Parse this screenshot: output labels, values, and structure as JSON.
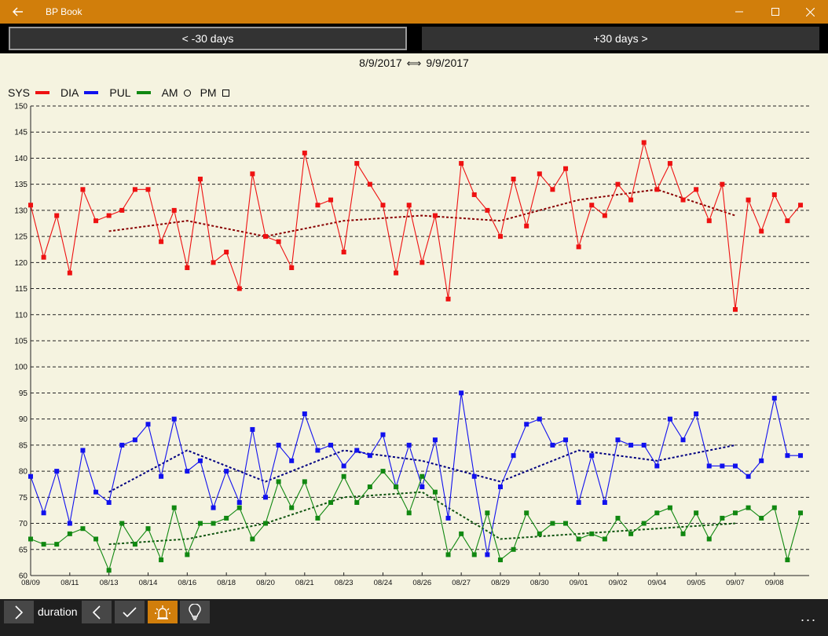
{
  "app": {
    "title": "BP Book"
  },
  "nav": {
    "prev_label": "< -30 days",
    "next_label": "+30 days >"
  },
  "date_range": {
    "start": "8/9/2017",
    "end": "9/9/2017",
    "arrow": "⟺"
  },
  "legend": {
    "sys": "SYS",
    "dia": "DIA",
    "pul": "PUL",
    "am": "AM",
    "pm": "PM"
  },
  "colors": {
    "sys": "#EE1111",
    "dia": "#1111EE",
    "pul": "#118811",
    "sys_trend": "#880000",
    "dia_trend": "#000080",
    "pul_trend": "#115511",
    "accent": "#D17E0B",
    "background": "#F5F3E0"
  },
  "icons": {
    "back": "back-arrow-icon",
    "minimize": "minimize-icon",
    "maximize": "maximize-icon",
    "close": "close-icon",
    "expand": "chevron-right-icon",
    "previous": "chevron-left-icon",
    "check": "checkmark-icon",
    "alarm": "alarm-light-icon",
    "tip": "lightbulb-icon",
    "more": "more-icon"
  },
  "bottom_bar": {
    "duration_label": "duration",
    "more": "..."
  },
  "chart_data": {
    "type": "line",
    "ylim": [
      60,
      150
    ],
    "yticks": [
      60,
      65,
      70,
      75,
      80,
      85,
      90,
      95,
      100,
      105,
      110,
      115,
      120,
      125,
      130,
      135,
      140,
      145,
      150
    ],
    "x_range": [
      0,
      59.3
    ],
    "xtick_labels": [
      "08/09",
      "08/11",
      "08/13",
      "08/14",
      "08/16",
      "08/18",
      "08/20",
      "08/21",
      "08/23",
      "08/24",
      "08/26",
      "08/27",
      "08/29",
      "08/30",
      "09/01",
      "09/02",
      "09/04",
      "09/05",
      "09/07",
      "09/08"
    ],
    "xtick_positions": [
      0,
      3,
      6,
      9,
      12,
      15,
      18,
      21,
      24,
      27,
      30,
      33,
      36,
      39,
      42,
      45,
      48,
      51,
      54,
      57
    ],
    "grid": "horizontal-dashed",
    "legend_position": "top-left",
    "series": [
      {
        "name": "SYS",
        "key": "sys",
        "values": [
          131,
          121,
          129,
          118,
          134,
          128,
          129,
          130,
          134,
          134,
          124,
          130,
          119,
          136,
          120,
          122,
          115,
          137,
          125,
          124,
          119,
          141,
          131,
          132,
          122,
          139,
          135,
          131,
          118,
          131,
          120,
          129,
          113,
          139,
          133,
          130,
          125,
          136,
          127,
          137,
          134,
          138,
          123,
          131,
          129,
          135,
          132,
          143,
          134,
          139,
          132,
          134,
          128,
          135,
          111,
          132,
          126,
          133,
          128,
          131
        ]
      },
      {
        "name": "DIA",
        "key": "dia",
        "values": [
          79,
          72,
          80,
          70,
          84,
          76,
          74,
          85,
          86,
          89,
          79,
          90,
          80,
          82,
          73,
          80,
          74,
          88,
          75,
          85,
          82,
          91,
          84,
          85,
          81,
          84,
          83,
          87,
          77,
          85,
          77,
          86,
          71,
          95,
          79,
          64,
          77,
          83,
          89,
          90,
          85,
          86,
          74,
          83,
          74,
          86,
          85,
          85,
          81,
          90,
          86,
          91,
          81,
          81,
          81,
          79,
          82,
          94,
          83,
          83
        ]
      },
      {
        "name": "PUL",
        "key": "pul",
        "values": [
          67,
          66,
          66,
          68,
          69,
          67,
          61,
          70,
          66,
          69,
          63,
          73,
          64,
          70,
          70,
          71,
          73,
          67,
          70,
          78,
          73,
          78,
          71,
          74,
          79,
          74,
          77,
          80,
          77,
          72,
          79,
          76,
          64,
          68,
          64,
          72,
          63,
          65,
          72,
          68,
          70,
          70,
          67,
          68,
          67,
          71,
          68,
          70,
          72,
          73,
          68,
          72,
          67,
          71,
          72,
          73,
          71,
          73,
          63,
          72
        ]
      }
    ],
    "trends": [
      {
        "of": "SYS",
        "x": [
          6,
          12,
          18,
          24,
          30,
          36,
          42,
          48,
          54
        ],
        "values": [
          126,
          128,
          125,
          128,
          129,
          128,
          132,
          134,
          129
        ]
      },
      {
        "of": "DIA",
        "x": [
          6,
          12,
          18,
          24,
          30,
          36,
          42,
          48,
          54
        ],
        "values": [
          76,
          84,
          78,
          84,
          82,
          78,
          84,
          82,
          85
        ]
      },
      {
        "of": "PUL",
        "x": [
          6,
          12,
          18,
          24,
          30,
          36,
          42,
          48,
          54
        ],
        "values": [
          66,
          67,
          70,
          75,
          76,
          67,
          68,
          69,
          70
        ]
      }
    ]
  }
}
